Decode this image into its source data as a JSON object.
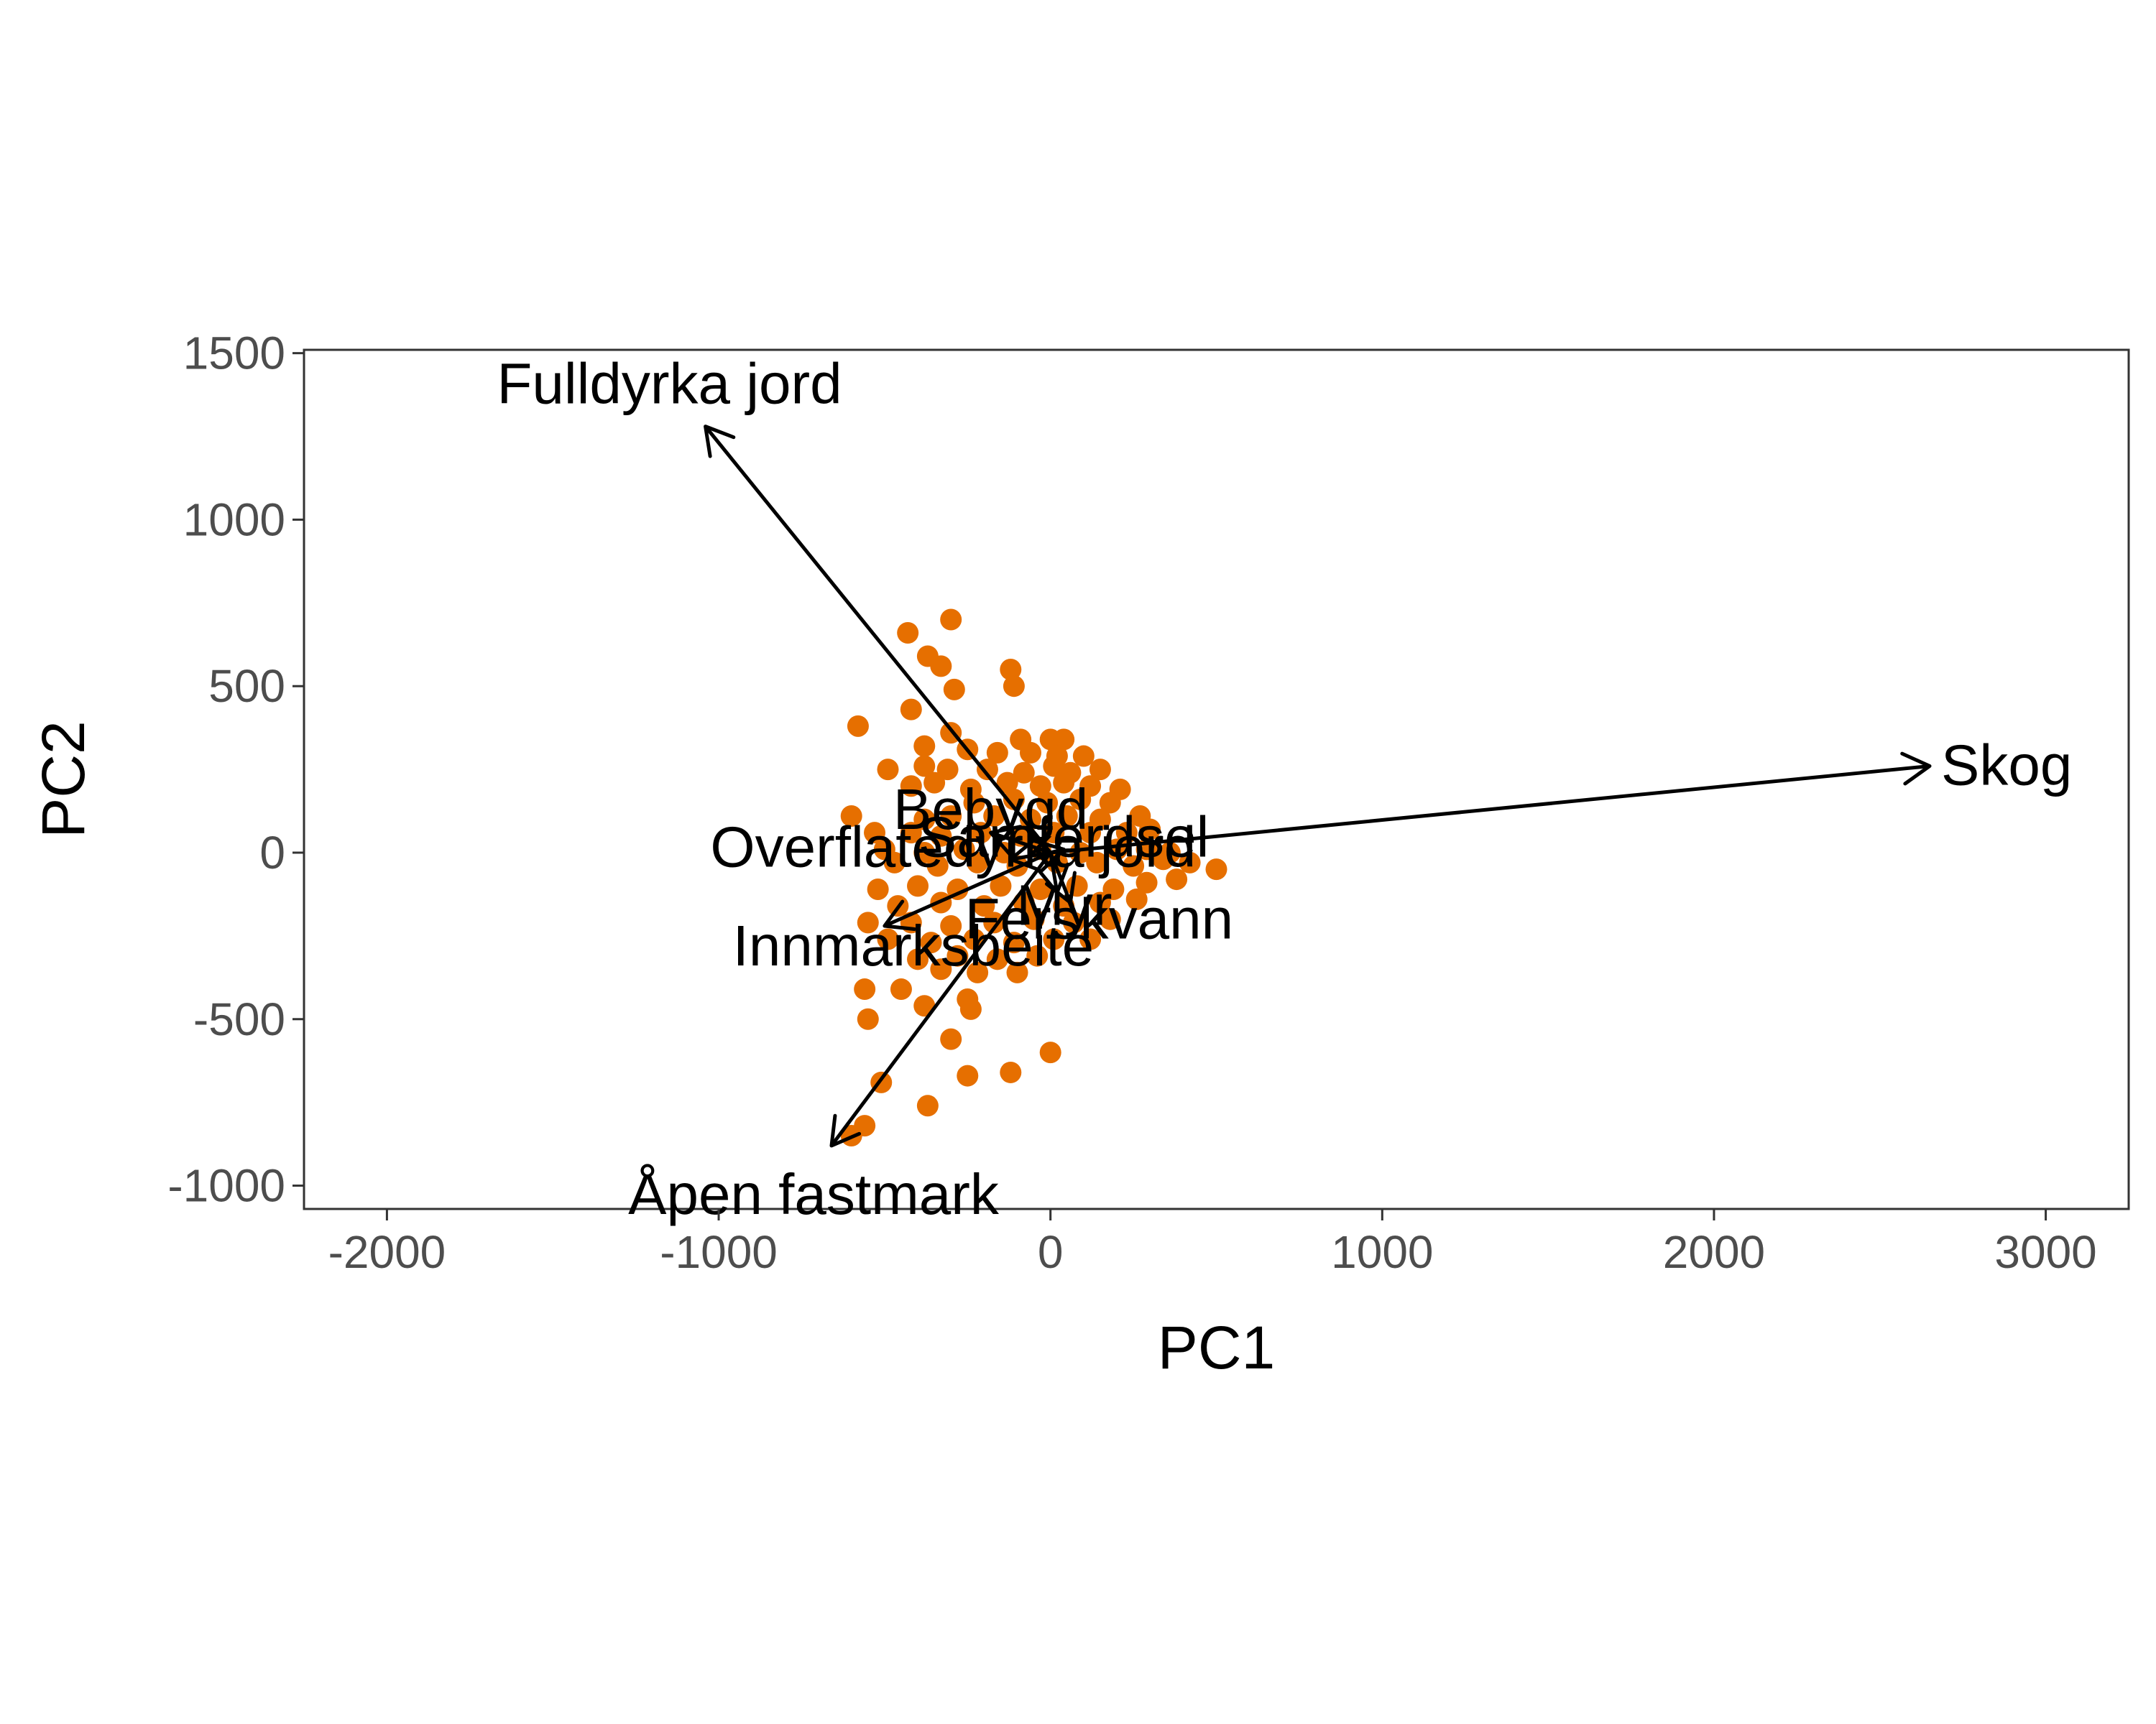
{
  "chart_data": {
    "type": "scatter",
    "title": "",
    "xlabel": "PC1",
    "ylabel": "PC2",
    "xlim": [
      -2250,
      3250
    ],
    "ylim": [
      -1070,
      1510
    ],
    "x_ticks": [
      -2000,
      -1000,
      0,
      1000,
      2000,
      3000
    ],
    "x_tick_labels": [
      "-2000",
      "-1000",
      "0",
      "1000",
      "2000",
      "3000"
    ],
    "y_ticks": [
      -1000,
      -500,
      0,
      500,
      1000,
      1500
    ],
    "y_tick_labels": [
      "-1000",
      "-500",
      "0",
      "500",
      "1000",
      "1500"
    ],
    "grid": false,
    "point_color": "#E66F00",
    "arrow_color": "#000000",
    "points": [
      {
        "x": -300,
        "y": 700
      },
      {
        "x": -430,
        "y": 660
      },
      {
        "x": -370,
        "y": 590
      },
      {
        "x": -330,
        "y": 560
      },
      {
        "x": -290,
        "y": 490
      },
      {
        "x": -120,
        "y": 550
      },
      {
        "x": -110,
        "y": 500
      },
      {
        "x": -580,
        "y": 380
      },
      {
        "x": -420,
        "y": 430
      },
      {
        "x": -300,
        "y": 360
      },
      {
        "x": -90,
        "y": 340
      },
      {
        "x": 0,
        "y": 340
      },
      {
        "x": 40,
        "y": 340
      },
      {
        "x": -380,
        "y": 320
      },
      {
        "x": -250,
        "y": 310
      },
      {
        "x": -160,
        "y": 300
      },
      {
        "x": -60,
        "y": 300
      },
      {
        "x": 20,
        "y": 290
      },
      {
        "x": 100,
        "y": 290
      },
      {
        "x": -490,
        "y": 250
      },
      {
        "x": -380,
        "y": 260
      },
      {
        "x": -310,
        "y": 250
      },
      {
        "x": -190,
        "y": 250
      },
      {
        "x": -80,
        "y": 240
      },
      {
        "x": 10,
        "y": 260
      },
      {
        "x": 60,
        "y": 240
      },
      {
        "x": 150,
        "y": 250
      },
      {
        "x": -420,
        "y": 200
      },
      {
        "x": -350,
        "y": 210
      },
      {
        "x": -240,
        "y": 190
      },
      {
        "x": -130,
        "y": 210
      },
      {
        "x": -30,
        "y": 200
      },
      {
        "x": 40,
        "y": 210
      },
      {
        "x": 120,
        "y": 200
      },
      {
        "x": 210,
        "y": 190
      },
      {
        "x": -230,
        "y": 150
      },
      {
        "x": -110,
        "y": 160
      },
      {
        "x": -10,
        "y": 150
      },
      {
        "x": 90,
        "y": 160
      },
      {
        "x": 180,
        "y": 150
      },
      {
        "x": -600,
        "y": 110
      },
      {
        "x": -380,
        "y": 100
      },
      {
        "x": -300,
        "y": 110
      },
      {
        "x": -170,
        "y": 110
      },
      {
        "x": -60,
        "y": 100
      },
      {
        "x": 50,
        "y": 110
      },
      {
        "x": 150,
        "y": 100
      },
      {
        "x": 270,
        "y": 110
      },
      {
        "x": -530,
        "y": 60
      },
      {
        "x": -420,
        "y": 60
      },
      {
        "x": -330,
        "y": 50
      },
      {
        "x": -210,
        "y": 60
      },
      {
        "x": -90,
        "y": 50
      },
      {
        "x": 10,
        "y": 60
      },
      {
        "x": 120,
        "y": 60
      },
      {
        "x": 230,
        "y": 60
      },
      {
        "x": 300,
        "y": 70
      },
      {
        "x": -500,
        "y": 10
      },
      {
        "x": -380,
        "y": 0
      },
      {
        "x": -260,
        "y": 10
      },
      {
        "x": -140,
        "y": 0
      },
      {
        "x": -30,
        "y": 10
      },
      {
        "x": 90,
        "y": 0
      },
      {
        "x": 200,
        "y": 10
      },
      {
        "x": 290,
        "y": 10
      },
      {
        "x": 360,
        "y": 0
      },
      {
        "x": -470,
        "y": -30
      },
      {
        "x": -340,
        "y": -40
      },
      {
        "x": -220,
        "y": -30
      },
      {
        "x": -100,
        "y": -40
      },
      {
        "x": 20,
        "y": -30
      },
      {
        "x": 140,
        "y": -30
      },
      {
        "x": 250,
        "y": -40
      },
      {
        "x": 340,
        "y": -20
      },
      {
        "x": 420,
        "y": -30
      },
      {
        "x": 500,
        "y": -50
      },
      {
        "x": -520,
        "y": -110
      },
      {
        "x": -400,
        "y": -100
      },
      {
        "x": -280,
        "y": -110
      },
      {
        "x": -150,
        "y": -100
      },
      {
        "x": -30,
        "y": -110
      },
      {
        "x": 80,
        "y": -100
      },
      {
        "x": 190,
        "y": -110
      },
      {
        "x": 290,
        "y": -90
      },
      {
        "x": 380,
        "y": -80
      },
      {
        "x": -460,
        "y": -160
      },
      {
        "x": -330,
        "y": -150
      },
      {
        "x": -200,
        "y": -160
      },
      {
        "x": -80,
        "y": -150
      },
      {
        "x": 40,
        "y": -160
      },
      {
        "x": 150,
        "y": -150
      },
      {
        "x": 260,
        "y": -140
      },
      {
        "x": -550,
        "y": -210
      },
      {
        "x": -420,
        "y": -210
      },
      {
        "x": -300,
        "y": -220
      },
      {
        "x": -170,
        "y": -210
      },
      {
        "x": -50,
        "y": -200
      },
      {
        "x": 70,
        "y": -210
      },
      {
        "x": 180,
        "y": -200
      },
      {
        "x": -490,
        "y": -260
      },
      {
        "x": -360,
        "y": -270
      },
      {
        "x": -230,
        "y": -260
      },
      {
        "x": -110,
        "y": -270
      },
      {
        "x": 10,
        "y": -260
      },
      {
        "x": 120,
        "y": -260
      },
      {
        "x": -400,
        "y": -320
      },
      {
        "x": -280,
        "y": -310
      },
      {
        "x": -160,
        "y": -320
      },
      {
        "x": -40,
        "y": -310
      },
      {
        "x": -330,
        "y": -350
      },
      {
        "x": -220,
        "y": -360
      },
      {
        "x": -100,
        "y": -360
      },
      {
        "x": -560,
        "y": -410
      },
      {
        "x": -450,
        "y": -410
      },
      {
        "x": -250,
        "y": -440
      },
      {
        "x": -550,
        "y": -500
      },
      {
        "x": -380,
        "y": -460
      },
      {
        "x": -240,
        "y": -470
      },
      {
        "x": -300,
        "y": -560
      },
      {
        "x": 0,
        "y": -600
      },
      {
        "x": -120,
        "y": -660
      },
      {
        "x": -250,
        "y": -670
      },
      {
        "x": -510,
        "y": -690
      },
      {
        "x": -370,
        "y": -760
      },
      {
        "x": -560,
        "y": -820
      },
      {
        "x": -600,
        "y": -850
      }
    ],
    "loadings": [
      {
        "label": "Fulldyrka jord",
        "x": -1040,
        "y": 1280
      },
      {
        "label": "Skog",
        "x": 2650,
        "y": 260
      },
      {
        "label": "Åpen fastmark",
        "x": -660,
        "y": -880
      },
      {
        "label": "Bebygd",
        "x": -180,
        "y": 60
      },
      {
        "label": "Samferdsel",
        "x": 40,
        "y": 10
      },
      {
        "label": "Overflatedyrka jord",
        "x": -120,
        "y": -20
      },
      {
        "label": "Innmarksbeite",
        "x": -500,
        "y": -220
      },
      {
        "label": "Ferskvann",
        "x": 60,
        "y": -150
      },
      {
        "label": "Myr",
        "x": 20,
        "y": -120
      }
    ]
  }
}
